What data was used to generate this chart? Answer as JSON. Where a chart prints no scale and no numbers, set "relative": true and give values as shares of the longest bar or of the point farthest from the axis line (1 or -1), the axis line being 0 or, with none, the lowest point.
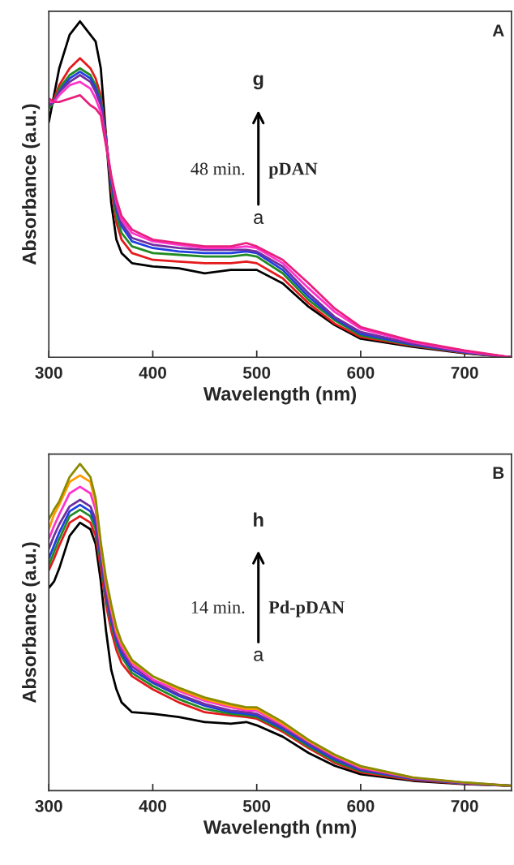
{
  "chart_data": [
    {
      "type": "line",
      "relative": true,
      "xlabel": "Wavelength (nm)",
      "ylabel": "Absorbance (a.u.)",
      "xlim": [
        300,
        745
      ],
      "xticks": [
        300,
        400,
        500,
        600,
        700
      ],
      "tick_labels": "x",
      "x": [
        300,
        305,
        310,
        320,
        330,
        340,
        345,
        350,
        355,
        360,
        365,
        370,
        380,
        400,
        425,
        450,
        475,
        490,
        500,
        525,
        550,
        575,
        600,
        650,
        700,
        745
      ],
      "annotations": [
        "A",
        "g",
        "a",
        "48 min.",
        "pDAN"
      ],
      "series": [
        {
          "color": "#000000",
          "values": [
            0.7,
            0.78,
            0.86,
            0.96,
            1.0,
            0.96,
            0.94,
            0.86,
            0.66,
            0.46,
            0.35,
            0.31,
            0.28,
            0.27,
            0.265,
            0.25,
            0.26,
            0.26,
            0.26,
            0.22,
            0.15,
            0.096,
            0.055,
            0.031,
            0.012,
            0
          ]
        },
        {
          "color": "#e41a1c",
          "values": [
            0.74,
            0.77,
            0.81,
            0.86,
            0.89,
            0.86,
            0.83,
            0.78,
            0.66,
            0.5,
            0.4,
            0.35,
            0.31,
            0.29,
            0.285,
            0.28,
            0.28,
            0.285,
            0.28,
            0.235,
            0.16,
            0.1,
            0.06,
            0.034,
            0.013,
            0
          ]
        },
        {
          "color": "#228b22",
          "values": [
            0.74,
            0.76,
            0.8,
            0.84,
            0.86,
            0.84,
            0.81,
            0.77,
            0.65,
            0.51,
            0.42,
            0.37,
            0.33,
            0.31,
            0.305,
            0.3,
            0.3,
            0.305,
            0.3,
            0.25,
            0.17,
            0.11,
            0.065,
            0.036,
            0.014,
            0
          ]
        },
        {
          "color": "#1f3fe0",
          "values": [
            0.75,
            0.76,
            0.79,
            0.83,
            0.85,
            0.83,
            0.8,
            0.76,
            0.65,
            0.52,
            0.44,
            0.39,
            0.345,
            0.325,
            0.315,
            0.31,
            0.31,
            0.315,
            0.31,
            0.26,
            0.18,
            0.115,
            0.07,
            0.038,
            0.015,
            0
          ]
        },
        {
          "color": "#7030a0",
          "values": [
            0.75,
            0.76,
            0.79,
            0.82,
            0.84,
            0.82,
            0.79,
            0.75,
            0.64,
            0.53,
            0.45,
            0.4,
            0.355,
            0.335,
            0.325,
            0.32,
            0.32,
            0.32,
            0.315,
            0.27,
            0.19,
            0.12,
            0.075,
            0.04,
            0.016,
            0
          ]
        },
        {
          "color": "#ff33cc",
          "values": [
            0.76,
            0.76,
            0.78,
            0.81,
            0.82,
            0.8,
            0.77,
            0.73,
            0.64,
            0.54,
            0.46,
            0.41,
            0.37,
            0.345,
            0.335,
            0.325,
            0.325,
            0.33,
            0.325,
            0.28,
            0.205,
            0.135,
            0.085,
            0.045,
            0.018,
            0
          ]
        },
        {
          "color": "#e8207e",
          "values": [
            0.77,
            0.76,
            0.76,
            0.77,
            0.78,
            0.75,
            0.74,
            0.72,
            0.63,
            0.54,
            0.47,
            0.42,
            0.38,
            0.35,
            0.34,
            0.33,
            0.33,
            0.34,
            0.33,
            0.29,
            0.22,
            0.145,
            0.09,
            0.048,
            0.02,
            0
          ]
        }
      ]
    },
    {
      "type": "line",
      "relative": true,
      "xlabel": "Wavelength (nm)",
      "ylabel": "Absorbance (a.u.)",
      "xlim": [
        300,
        745
      ],
      "xticks": [
        300,
        400,
        500,
        600,
        700
      ],
      "tick_labels": "x",
      "x": [
        300,
        305,
        310,
        320,
        330,
        340,
        345,
        350,
        355,
        360,
        365,
        370,
        380,
        400,
        425,
        450,
        475,
        490,
        500,
        525,
        550,
        575,
        600,
        650,
        700,
        745
      ],
      "annotations": [
        "B",
        "h",
        "a",
        "14 min.",
        "Pd-pDAN"
      ],
      "series": [
        {
          "color": "#000000",
          "values": [
            0.62,
            0.64,
            0.68,
            0.78,
            0.82,
            0.8,
            0.755,
            0.64,
            0.49,
            0.37,
            0.31,
            0.27,
            0.24,
            0.235,
            0.225,
            0.21,
            0.205,
            0.21,
            0.2,
            0.165,
            0.115,
            0.076,
            0.05,
            0.03,
            0.02,
            0.015
          ]
        },
        {
          "color": "#e41a1c",
          "values": [
            0.675,
            0.71,
            0.75,
            0.82,
            0.84,
            0.82,
            0.78,
            0.68,
            0.57,
            0.49,
            0.43,
            0.39,
            0.35,
            0.31,
            0.27,
            0.24,
            0.23,
            0.225,
            0.22,
            0.18,
            0.13,
            0.085,
            0.056,
            0.033,
            0.021,
            0.015
          ]
        },
        {
          "color": "#228b22",
          "values": [
            0.69,
            0.73,
            0.77,
            0.84,
            0.86,
            0.84,
            0.8,
            0.7,
            0.59,
            0.51,
            0.45,
            0.41,
            0.36,
            0.32,
            0.28,
            0.25,
            0.235,
            0.23,
            0.225,
            0.185,
            0.135,
            0.09,
            0.06,
            0.035,
            0.022,
            0.015
          ]
        },
        {
          "color": "#1f3fe0",
          "values": [
            0.71,
            0.75,
            0.79,
            0.855,
            0.875,
            0.855,
            0.815,
            0.71,
            0.6,
            0.52,
            0.46,
            0.42,
            0.37,
            0.33,
            0.29,
            0.26,
            0.24,
            0.235,
            0.23,
            0.19,
            0.14,
            0.095,
            0.063,
            0.036,
            0.022,
            0.015
          ]
        },
        {
          "color": "#7030a0",
          "values": [
            0.74,
            0.78,
            0.815,
            0.87,
            0.89,
            0.87,
            0.83,
            0.72,
            0.61,
            0.53,
            0.47,
            0.43,
            0.38,
            0.335,
            0.295,
            0.265,
            0.245,
            0.24,
            0.235,
            0.195,
            0.145,
            0.1,
            0.066,
            0.037,
            0.023,
            0.015
          ]
        },
        {
          "color": "#ff33cc",
          "values": [
            0.77,
            0.81,
            0.845,
            0.91,
            0.93,
            0.91,
            0.86,
            0.74,
            0.63,
            0.55,
            0.48,
            0.44,
            0.39,
            0.34,
            0.305,
            0.275,
            0.255,
            0.245,
            0.245,
            0.2,
            0.15,
            0.105,
            0.07,
            0.039,
            0.024,
            0.015
          ]
        },
        {
          "color": "#ff9900",
          "values": [
            0.8,
            0.845,
            0.875,
            0.945,
            0.965,
            0.945,
            0.88,
            0.75,
            0.64,
            0.56,
            0.49,
            0.45,
            0.395,
            0.35,
            0.31,
            0.28,
            0.26,
            0.25,
            0.25,
            0.205,
            0.152,
            0.108,
            0.073,
            0.04,
            null,
            null
          ]
        },
        {
          "color": "#8b8b00",
          "values": [
            0.83,
            0.86,
            0.885,
            0.96,
            1.0,
            0.96,
            0.895,
            0.76,
            0.65,
            0.57,
            0.5,
            0.455,
            0.4,
            0.35,
            0.315,
            0.285,
            0.265,
            0.255,
            0.255,
            0.21,
            0.155,
            0.11,
            0.075,
            0.04,
            0.025,
            0.015
          ]
        }
      ]
    }
  ]
}
